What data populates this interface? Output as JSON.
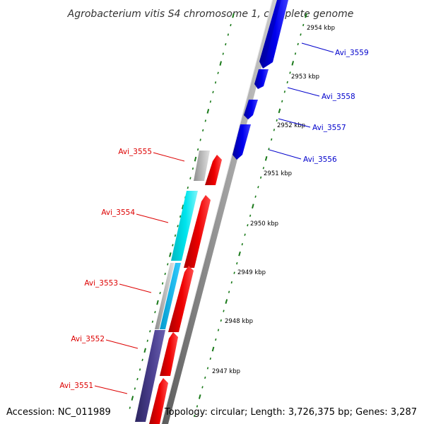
{
  "title": "Agrobacterium vitis S4 chromosome 1, complete genome",
  "footer": {
    "accession": "Accession: NC_011989",
    "summary": "Topology: circular; Length: 3,726,375 bp; Genes: 3,287"
  },
  "colors": {
    "forward_label": "#0000cc",
    "reverse_label": "#dd0000",
    "forward_gene": "#0000ee",
    "reverse_gene": "#ee0000",
    "cyan_gene": "#00e5ee",
    "gray_gene": "#b8b8b8",
    "slate_gene": "#4a3f8f",
    "tick": "#1a7a1a",
    "backbone": "#8c8c8c"
  },
  "kbp_ticks": [
    "2954 kbp",
    "2953 kbp",
    "2952 kbp",
    "2951 kbp",
    "2950 kbp",
    "2949 kbp",
    "2948 kbp",
    "2947 kbp"
  ],
  "forward_genes": [
    {
      "label": "Avi_3559"
    },
    {
      "label": "Avi_3558"
    },
    {
      "label": "Avi_3557"
    },
    {
      "label": "Avi_3556"
    }
  ],
  "reverse_genes": [
    {
      "label": "Avi_3555"
    },
    {
      "label": "Avi_3554"
    },
    {
      "label": "Avi_3553"
    },
    {
      "label": "Avi_3552"
    },
    {
      "label": "Avi_3551"
    }
  ]
}
